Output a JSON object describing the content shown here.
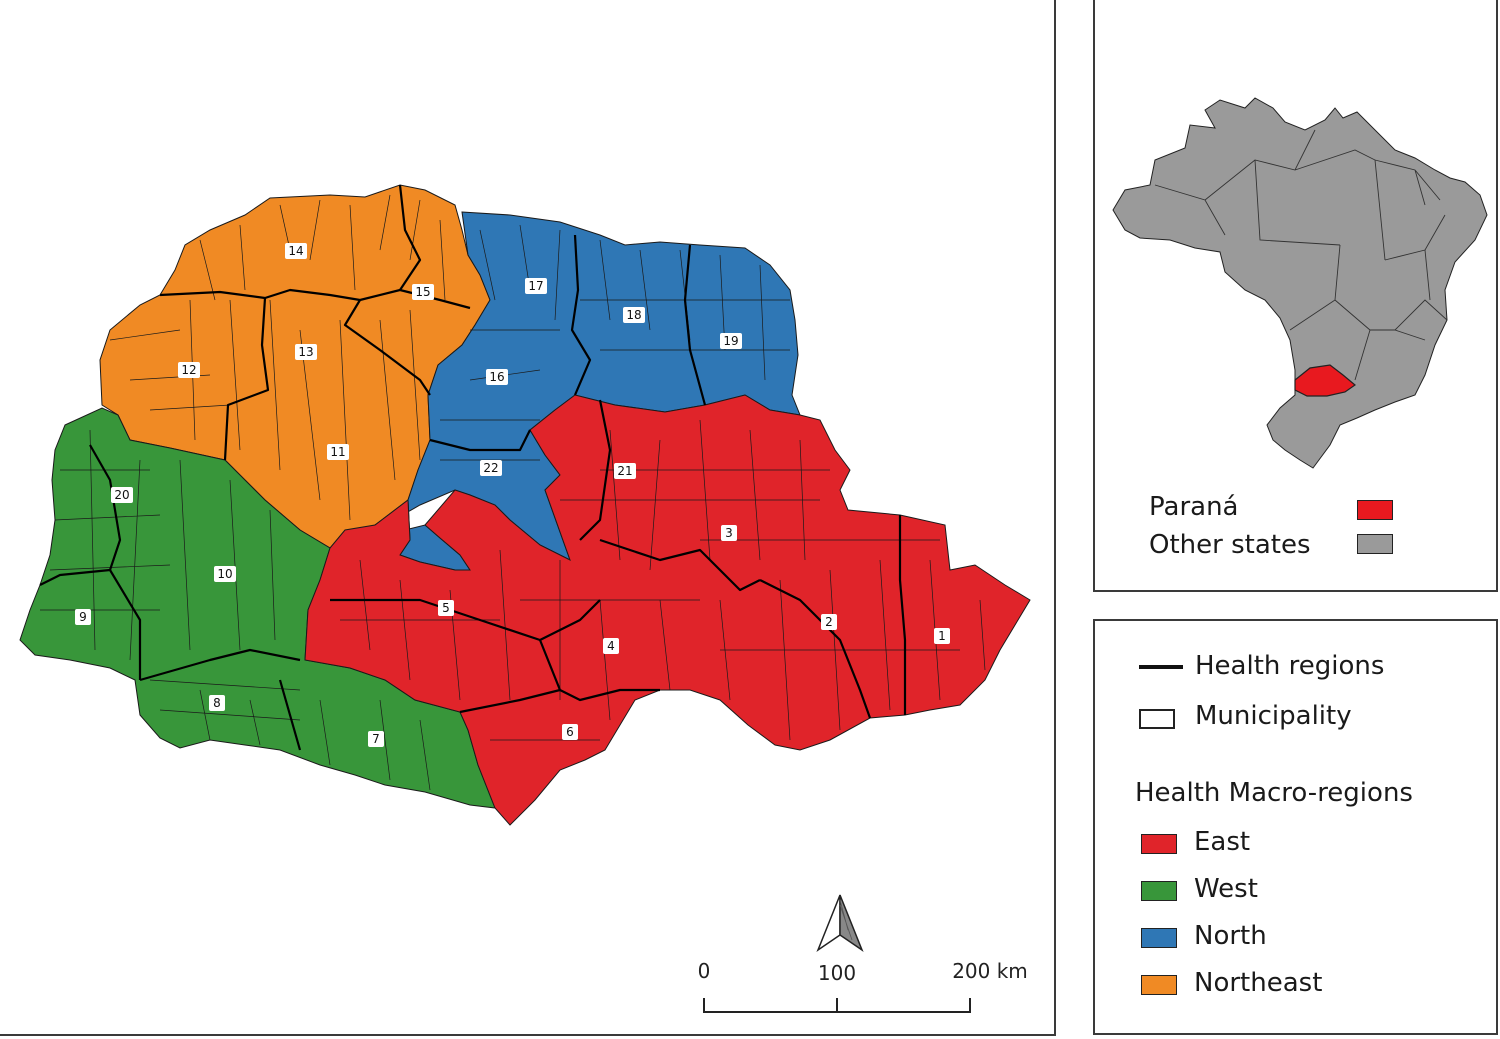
{
  "map": {
    "regions": [
      {
        "num": "1",
        "macro": "East"
      },
      {
        "num": "2",
        "macro": "East"
      },
      {
        "num": "3",
        "macro": "East"
      },
      {
        "num": "4",
        "macro": "East"
      },
      {
        "num": "5",
        "macro": "East"
      },
      {
        "num": "6",
        "macro": "East"
      },
      {
        "num": "7",
        "macro": "West"
      },
      {
        "num": "8",
        "macro": "West"
      },
      {
        "num": "9",
        "macro": "West"
      },
      {
        "num": "10",
        "macro": "West"
      },
      {
        "num": "11",
        "macro": "Northeast"
      },
      {
        "num": "12",
        "macro": "Northeast"
      },
      {
        "num": "13",
        "macro": "Northeast"
      },
      {
        "num": "14",
        "macro": "Northeast"
      },
      {
        "num": "15",
        "macro": "Northeast"
      },
      {
        "num": "16",
        "macro": "North"
      },
      {
        "num": "17",
        "macro": "North"
      },
      {
        "num": "18",
        "macro": "North"
      },
      {
        "num": "19",
        "macro": "North"
      },
      {
        "num": "20",
        "macro": "West"
      },
      {
        "num": "21",
        "macro": "East"
      },
      {
        "num": "22",
        "macro": "North"
      }
    ],
    "colors": {
      "East": "#e0242a",
      "West": "#38963a",
      "North": "#2f77b5",
      "Northeast": "#f08a24",
      "other_states": "#9a9a9a",
      "parana": "#e8191f"
    }
  },
  "scale_bar": {
    "tick_0": "0",
    "tick_100": "100",
    "tick_200": "200 km"
  },
  "inset_legend": {
    "parana": "Paraná",
    "other_states": "Other states"
  },
  "legend": {
    "health_regions": "Health regions",
    "municipality": "Municipality",
    "macro_title": "Health Macro-regions",
    "east": "East",
    "west": "West",
    "north": "North",
    "northeast": "Northeast"
  },
  "icons": {
    "north_arrow": "north-arrow-icon"
  }
}
